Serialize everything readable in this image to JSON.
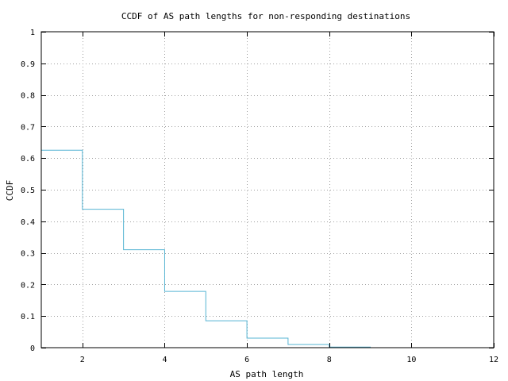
{
  "chart_data": {
    "type": "line",
    "step": true,
    "title": "CCDF of AS path lengths for non-responding destinations",
    "xlabel": "AS path length",
    "ylabel": "CCDF",
    "xlim": [
      1,
      12
    ],
    "ylim": [
      0,
      1
    ],
    "xticks": [
      2,
      4,
      6,
      8,
      10,
      12
    ],
    "yticks": [
      0,
      0.1,
      0.2,
      0.3,
      0.4,
      0.5,
      0.6,
      0.7,
      0.8,
      0.9,
      1
    ],
    "grid": true,
    "legend": "none",
    "series": [
      {
        "color": "#56b4d3",
        "x": [
          1,
          2,
          3,
          4,
          5,
          6,
          7,
          8,
          9
        ],
        "y": [
          0.625,
          0.438,
          0.31,
          0.178,
          0.085,
          0.03,
          0.01,
          0.002,
          0.0
        ]
      }
    ]
  }
}
